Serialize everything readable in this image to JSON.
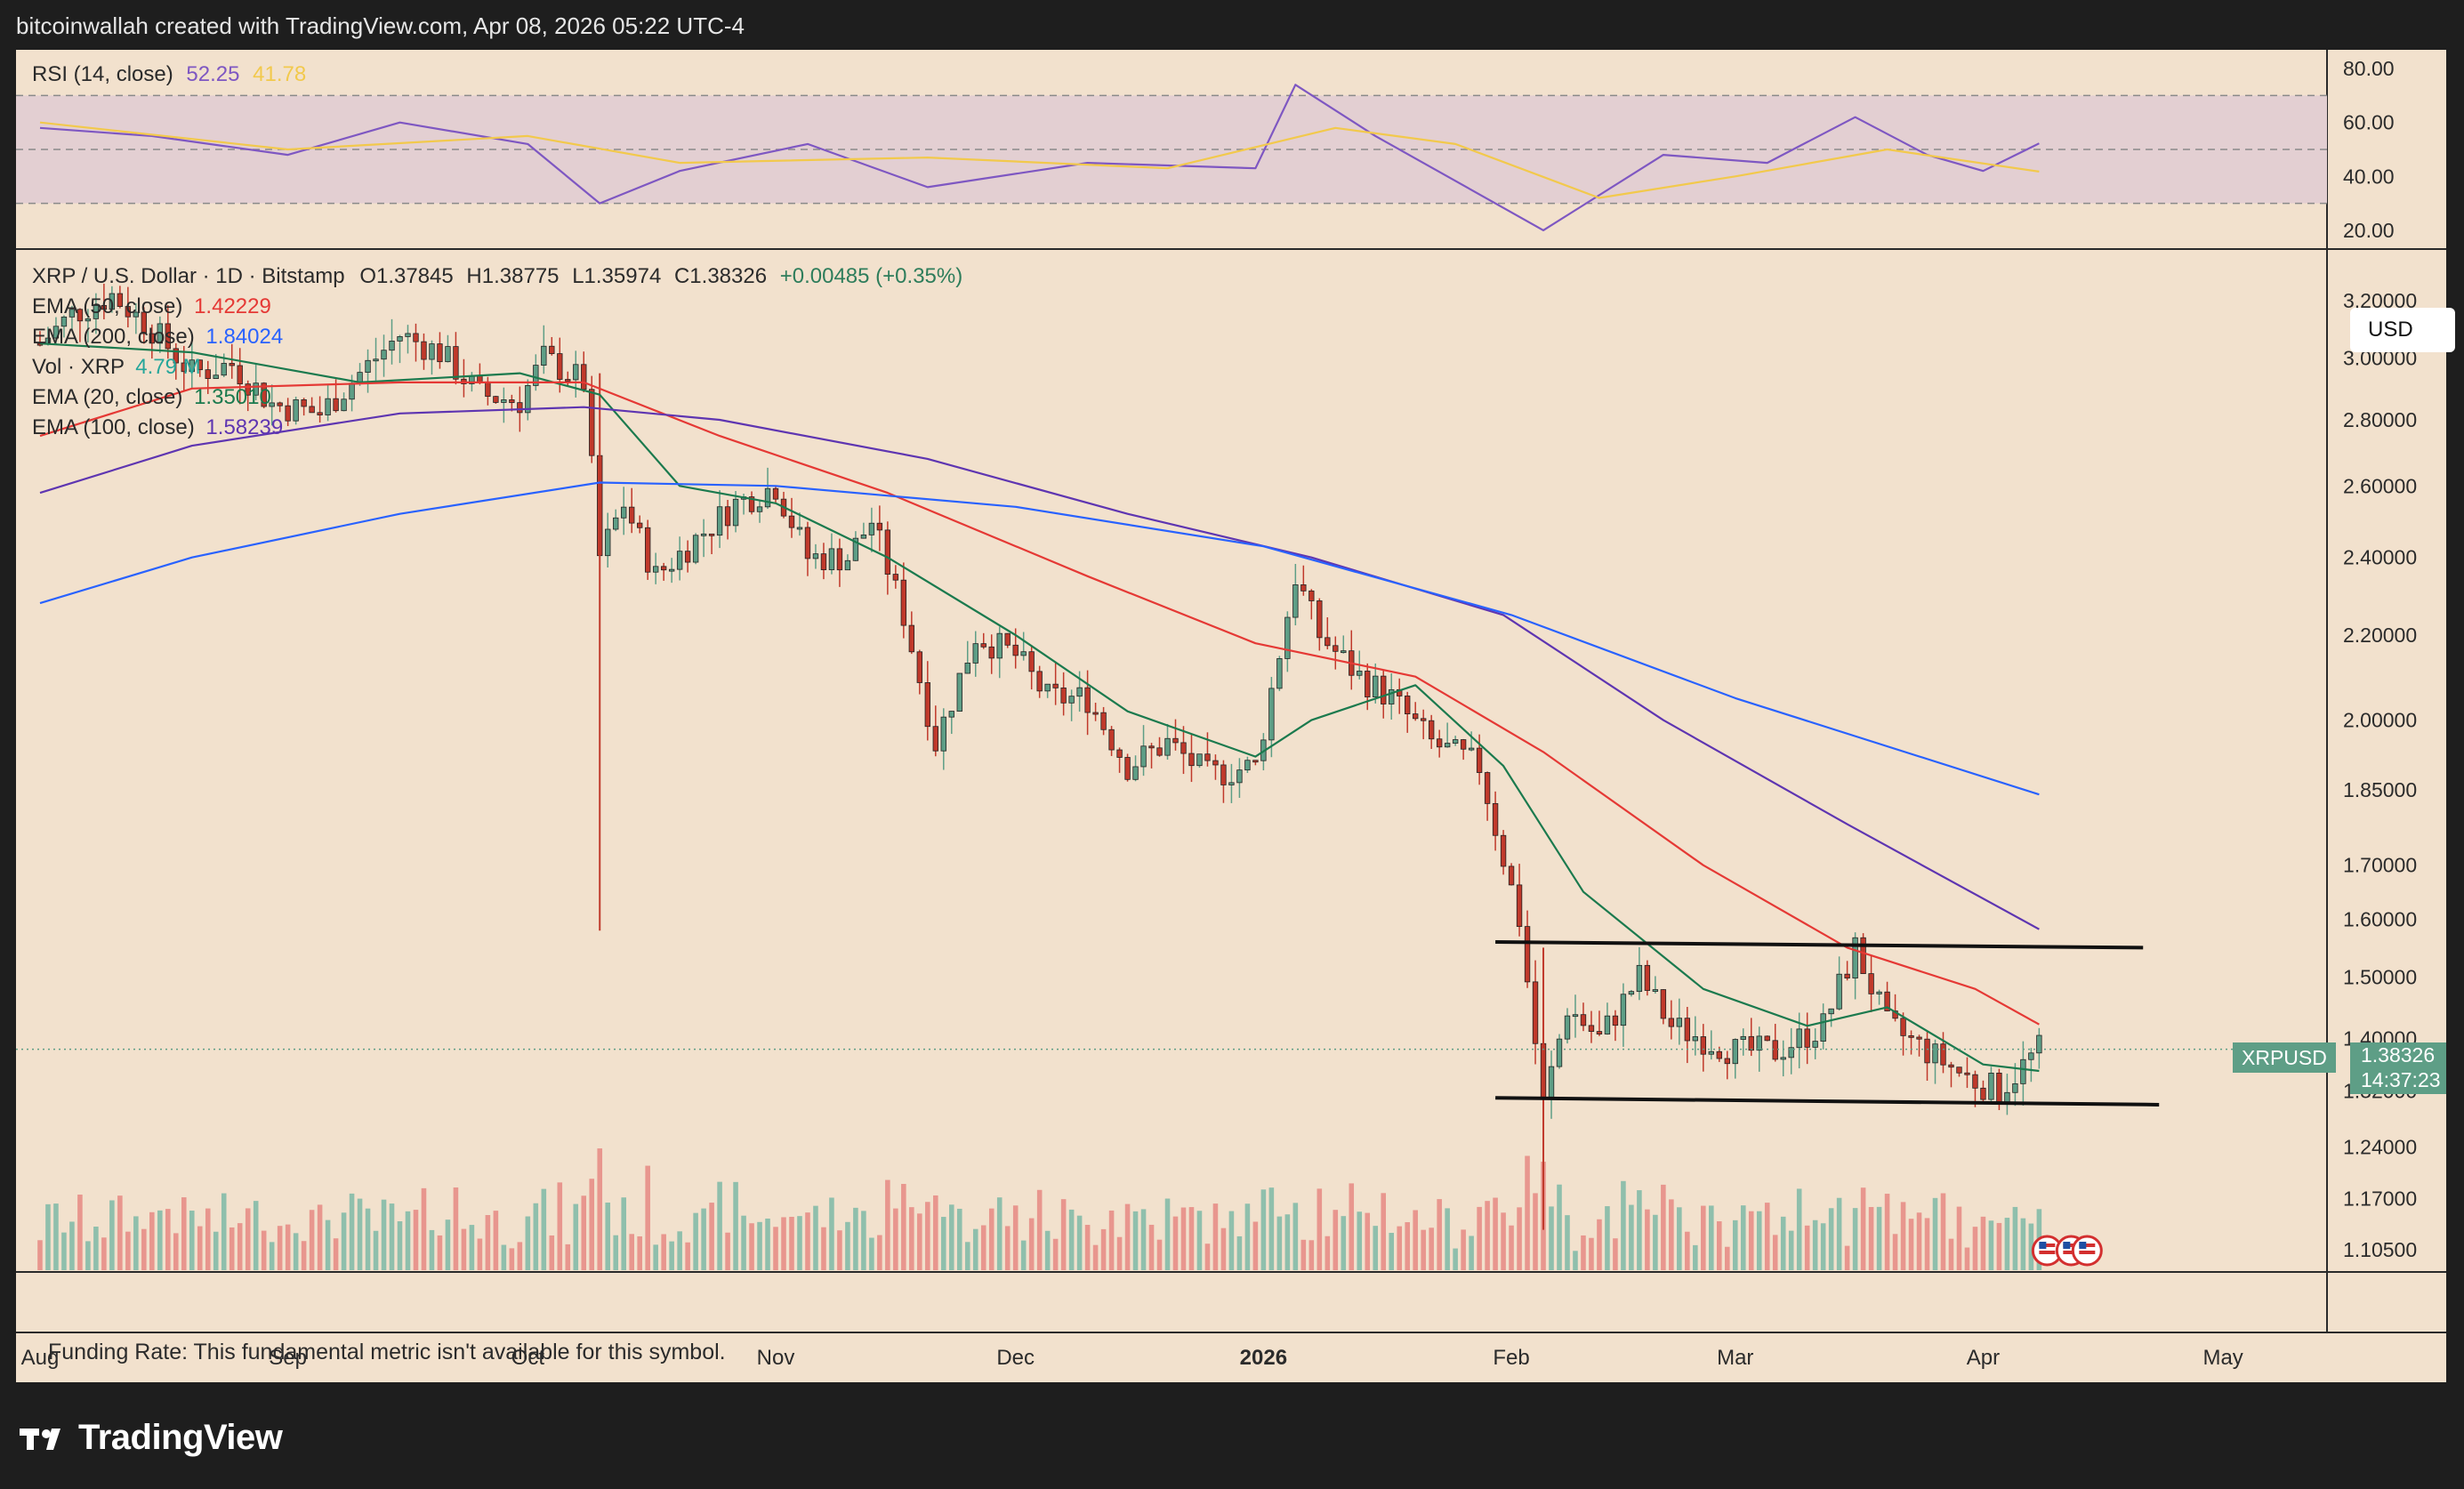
{
  "header": {
    "text": "bitcoinwallah created with TradingView.com, Apr 08, 2026 05:22 UTC-4"
  },
  "brand": {
    "name": "TradingView"
  },
  "rsi": {
    "label": "RSI (14, close)",
    "value": "52.25",
    "ma_value": "41.78",
    "ticks": [
      "80.00",
      "60.00",
      "40.00",
      "20.00"
    ],
    "tick_values": [
      80,
      60,
      40,
      20
    ],
    "bands": [
      70,
      50,
      30
    ],
    "range": [
      15,
      85
    ],
    "rsi_color": "#7e57c2",
    "ma_color": "#f2c94c"
  },
  "legend": {
    "symbol": "XRP / U.S. Dollar · 1D · Bitstamp",
    "ohlc": {
      "o": "O1.37845",
      "h": "H1.38775",
      "l": "L1.35974",
      "c": "C1.38326",
      "chg": "+0.00485 (+0.35%)"
    },
    "ema50": {
      "label": "EMA (50, close)",
      "value": "1.42229",
      "color": "#e53935"
    },
    "ema200": {
      "label": "EMA (200, close)",
      "value": "1.84024",
      "color": "#2962ff"
    },
    "vol": {
      "label": "Vol · XRP",
      "value": "4.79 M",
      "color": "#26a69a"
    },
    "ema20": {
      "label": "EMA (20, close)",
      "value": "1.35010",
      "color": "#1b7a4e"
    },
    "ema100": {
      "label": "EMA (100, close)",
      "value": "1.58239",
      "color": "#5e35b1"
    }
  },
  "currency": "USD",
  "price_axis": {
    "ticks": [
      "3.20000",
      "3.00000",
      "2.80000",
      "2.60000",
      "2.40000",
      "2.20000",
      "2.00000",
      "1.85000",
      "1.70000",
      "1.60000",
      "1.50000",
      "1.40000",
      "1.32000",
      "1.24000",
      "1.17000",
      "1.10500"
    ],
    "tick_values": [
      3.2,
      3.0,
      2.8,
      2.6,
      2.4,
      2.2,
      2.0,
      1.85,
      1.7,
      1.6,
      1.5,
      1.4,
      1.32,
      1.24,
      1.17,
      1.105
    ],
    "scale": "log"
  },
  "last_price": {
    "symbol": "XRPUSD",
    "price": "1.38326",
    "countdown": "14:37:23"
  },
  "funding_rate": "Funding Rate: This fundamental metric isn't available for this symbol.",
  "time_axis": [
    "Aug",
    "Sep",
    "Oct",
    "Nov",
    "Dec",
    "2026",
    "Feb",
    "Mar",
    "Apr",
    "May"
  ],
  "colors": {
    "up": "#5e9e86",
    "down": "#c0392b",
    "vol_up": "#8fbfac",
    "vol_down": "#e8968e",
    "trendline": "#111111"
  },
  "chart_data": {
    "type": "candlestick",
    "title": "XRP / U.S. Dollar · 1D · Bitstamp",
    "x_range": [
      "2025-07-29",
      "2026-05-14"
    ],
    "y_scale": "log",
    "ylim": [
      1.08,
      3.35
    ],
    "series": [
      {
        "name": "XRP / U.S. Dollar",
        "type": "close_path",
        "points": [
          [
            "2025-08-01",
            3.05
          ],
          [
            "2025-08-05",
            3.15
          ],
          [
            "2025-08-10",
            3.22
          ],
          [
            "2025-08-15",
            3.1
          ],
          [
            "2025-08-20",
            2.95
          ],
          [
            "2025-08-25",
            2.98
          ],
          [
            "2025-08-30",
            2.85
          ],
          [
            "2025-09-05",
            2.82
          ],
          [
            "2025-09-10",
            2.95
          ],
          [
            "2025-09-15",
            3.08
          ],
          [
            "2025-09-20",
            3.02
          ],
          [
            "2025-09-25",
            2.88
          ],
          [
            "2025-09-30",
            2.86
          ],
          [
            "2025-10-03",
            3.0
          ],
          [
            "2025-10-08",
            2.92
          ],
          [
            "2025-10-10",
            2.4
          ],
          [
            "2025-10-13",
            2.55
          ],
          [
            "2025-10-17",
            2.35
          ],
          [
            "2025-10-22",
            2.45
          ],
          [
            "2025-10-27",
            2.55
          ],
          [
            "2025-11-01",
            2.6
          ],
          [
            "2025-11-05",
            2.4
          ],
          [
            "2025-11-10",
            2.4
          ],
          [
            "2025-11-13",
            2.5
          ],
          [
            "2025-11-17",
            2.25
          ],
          [
            "2025-11-21",
            1.95
          ],
          [
            "2025-11-26",
            2.2
          ],
          [
            "2025-12-01",
            2.15
          ],
          [
            "2025-12-05",
            2.05
          ],
          [
            "2025-12-10",
            2.05
          ],
          [
            "2025-12-15",
            1.9
          ],
          [
            "2025-12-20",
            1.95
          ],
          [
            "2025-12-25",
            1.88
          ],
          [
            "2025-12-31",
            1.9
          ],
          [
            "2026-01-05",
            2.35
          ],
          [
            "2026-01-08",
            2.2
          ],
          [
            "2026-01-13",
            2.1
          ],
          [
            "2026-01-17",
            2.05
          ],
          [
            "2026-01-22",
            1.95
          ],
          [
            "2026-01-28",
            1.9
          ],
          [
            "2026-02-02",
            1.6
          ],
          [
            "2026-02-05",
            1.3
          ],
          [
            "2026-02-08",
            1.45
          ],
          [
            "2026-02-12",
            1.4
          ],
          [
            "2026-02-17",
            1.5
          ],
          [
            "2026-02-21",
            1.42
          ],
          [
            "2026-03-01",
            1.38
          ],
          [
            "2026-03-06",
            1.38
          ],
          [
            "2026-03-12",
            1.42
          ],
          [
            "2026-03-16",
            1.55
          ],
          [
            "2026-03-20",
            1.42
          ],
          [
            "2026-03-25",
            1.38
          ],
          [
            "2026-03-30",
            1.34
          ],
          [
            "2026-04-03",
            1.32
          ],
          [
            "2026-04-08",
            1.38326
          ]
        ]
      },
      {
        "name": "EMA (20, close)",
        "color": "#1b7a4e",
        "points": [
          [
            "2025-08-01",
            3.05
          ],
          [
            "2025-08-20",
            3.02
          ],
          [
            "2025-09-10",
            2.92
          ],
          [
            "2025-09-30",
            2.95
          ],
          [
            "2025-10-10",
            2.88
          ],
          [
            "2025-10-20",
            2.6
          ],
          [
            "2025-11-01",
            2.55
          ],
          [
            "2025-11-15",
            2.4
          ],
          [
            "2025-12-01",
            2.2
          ],
          [
            "2025-12-15",
            2.02
          ],
          [
            "2025-12-31",
            1.92
          ],
          [
            "2026-01-07",
            2.0
          ],
          [
            "2026-01-20",
            2.08
          ],
          [
            "2026-01-31",
            1.9
          ],
          [
            "2026-02-10",
            1.65
          ],
          [
            "2026-02-25",
            1.48
          ],
          [
            "2026-03-10",
            1.42
          ],
          [
            "2026-03-20",
            1.45
          ],
          [
            "2026-04-01",
            1.36
          ],
          [
            "2026-04-08",
            1.3501
          ]
        ]
      },
      {
        "name": "EMA (50, close)",
        "color": "#e53935",
        "points": [
          [
            "2025-08-01",
            2.75
          ],
          [
            "2025-08-20",
            2.9
          ],
          [
            "2025-09-15",
            2.92
          ],
          [
            "2025-10-08",
            2.92
          ],
          [
            "2025-10-25",
            2.75
          ],
          [
            "2025-11-15",
            2.58
          ],
          [
            "2025-12-10",
            2.35
          ],
          [
            "2025-12-31",
            2.18
          ],
          [
            "2026-01-20",
            2.1
          ],
          [
            "2026-02-05",
            1.93
          ],
          [
            "2026-02-25",
            1.7
          ],
          [
            "2026-03-15",
            1.55
          ],
          [
            "2026-03-31",
            1.48
          ],
          [
            "2026-04-08",
            1.42229
          ]
        ]
      },
      {
        "name": "EMA (100, close)",
        "color": "#5e35b1",
        "points": [
          [
            "2025-08-01",
            2.58
          ],
          [
            "2025-08-20",
            2.72
          ],
          [
            "2025-09-15",
            2.82
          ],
          [
            "2025-10-08",
            2.84
          ],
          [
            "2025-10-25",
            2.8
          ],
          [
            "2025-11-20",
            2.68
          ],
          [
            "2025-12-15",
            2.52
          ],
          [
            "2026-01-07",
            2.4
          ],
          [
            "2026-01-31",
            2.25
          ],
          [
            "2026-02-20",
            2.0
          ],
          [
            "2026-03-15",
            1.78
          ],
          [
            "2026-04-08",
            1.58239
          ]
        ]
      },
      {
        "name": "EMA (200, close)",
        "color": "#2962ff",
        "points": [
          [
            "2025-08-01",
            2.28
          ],
          [
            "2025-08-20",
            2.4
          ],
          [
            "2025-09-15",
            2.52
          ],
          [
            "2025-10-10",
            2.61
          ],
          [
            "2025-11-01",
            2.6
          ],
          [
            "2025-12-01",
            2.54
          ],
          [
            "2026-01-01",
            2.43
          ],
          [
            "2026-02-01",
            2.25
          ],
          [
            "2026-03-01",
            2.05
          ],
          [
            "2026-04-08",
            1.84024
          ]
        ]
      },
      {
        "name": "RSI (14, close)",
        "color": "#7e57c2",
        "points": [
          [
            "2025-08-01",
            58
          ],
          [
            "2025-08-15",
            55
          ],
          [
            "2025-09-01",
            48
          ],
          [
            "2025-09-15",
            60
          ],
          [
            "2025-10-01",
            52
          ],
          [
            "2025-10-10",
            30
          ],
          [
            "2025-10-20",
            42
          ],
          [
            "2025-11-05",
            52
          ],
          [
            "2025-11-20",
            36
          ],
          [
            "2025-12-10",
            45
          ],
          [
            "2025-12-31",
            43
          ],
          [
            "2026-01-05",
            74
          ],
          [
            "2026-01-15",
            55
          ],
          [
            "2026-02-05",
            20
          ],
          [
            "2026-02-20",
            48
          ],
          [
            "2026-03-05",
            45
          ],
          [
            "2026-03-16",
            62
          ],
          [
            "2026-03-25",
            48
          ],
          [
            "2026-04-01",
            42
          ],
          [
            "2026-04-08",
            52.25
          ]
        ]
      },
      {
        "name": "RSI MA",
        "color": "#f2c94c",
        "points": [
          [
            "2025-08-01",
            60
          ],
          [
            "2025-09-01",
            50
          ],
          [
            "2025-10-01",
            55
          ],
          [
            "2025-10-20",
            45
          ],
          [
            "2025-11-20",
            47
          ],
          [
            "2025-12-20",
            43
          ],
          [
            "2026-01-10",
            58
          ],
          [
            "2026-01-25",
            52
          ],
          [
            "2026-02-12",
            32
          ],
          [
            "2026-03-01",
            40
          ],
          [
            "2026-03-20",
            50
          ],
          [
            "2026-04-08",
            41.78
          ]
        ]
      }
    ],
    "annotations": [
      {
        "type": "trendline",
        "from": [
          "2026-01-30",
          1.56
        ],
        "to": [
          "2026-04-21",
          1.55
        ]
      },
      {
        "type": "trendline",
        "from": [
          "2026-01-30",
          1.31
        ],
        "to": [
          "2026-04-23",
          1.3
        ]
      }
    ],
    "last_price": 1.38326,
    "volume_label": "Vol · XRP",
    "volume_last": "4.79 M"
  }
}
